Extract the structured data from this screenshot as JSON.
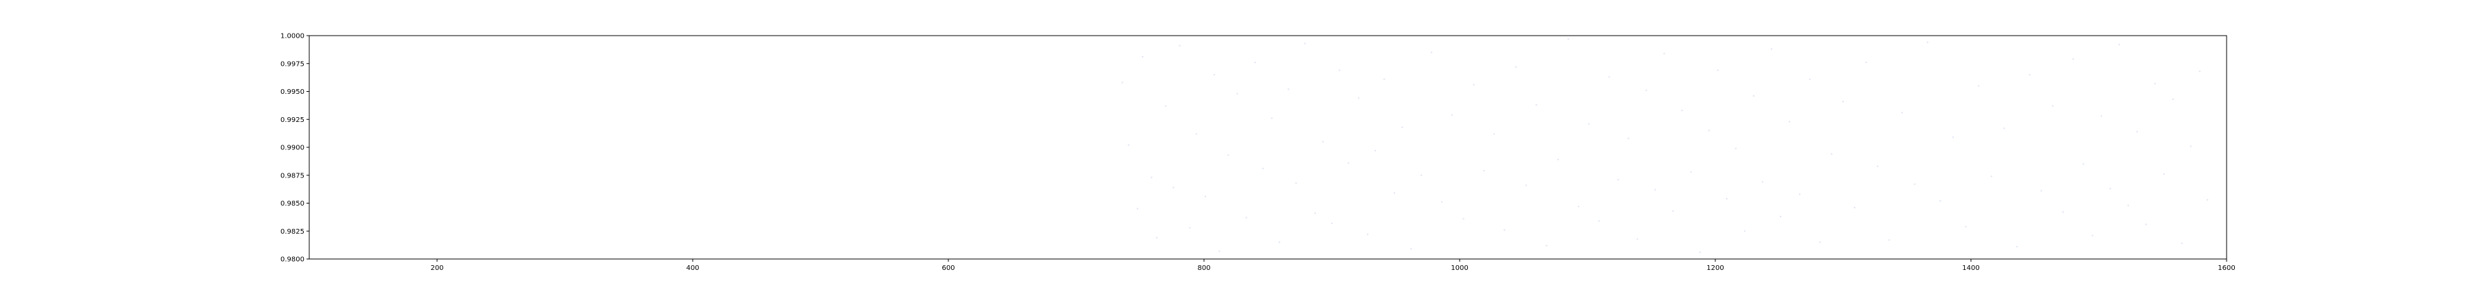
{
  "chart_data": {
    "type": "scatter",
    "title": "",
    "xlabel": "",
    "ylabel": "",
    "xlim": [
      100,
      1600
    ],
    "ylim": [
      0.98,
      1.0
    ],
    "xticks": [
      200,
      400,
      600,
      800,
      1000,
      1200,
      1400,
      1600
    ],
    "yticks": [
      0.98,
      0.9825,
      0.985,
      0.9875,
      0.99,
      0.9925,
      0.995,
      0.9975,
      1.0
    ],
    "xtick_labels": [
      "200",
      "400",
      "600",
      "800",
      "1000",
      "1200",
      "1400",
      "1600"
    ],
    "ytick_labels": [
      "0.9800",
      "0.9825",
      "0.9850",
      "0.9875",
      "0.9900",
      "0.9925",
      "0.9950",
      "0.9975",
      "1.0000"
    ],
    "grid": false,
    "legend": "none",
    "point_color": "#c8d2e6",
    "point_opacity": 0.55,
    "series": [
      {
        "points": [
          [
            736,
            0.9958
          ],
          [
            741,
            0.9902
          ],
          [
            748,
            0.9845
          ],
          [
            752,
            0.9981
          ],
          [
            759,
            0.9873
          ],
          [
            763,
            0.9819
          ],
          [
            770,
            0.9937
          ],
          [
            776,
            0.9864
          ],
          [
            781,
            0.9991
          ],
          [
            789,
            0.9828
          ],
          [
            794,
            0.9912
          ],
          [
            801,
            0.9856
          ],
          [
            808,
            0.9965
          ],
          [
            812,
            0.9807
          ],
          [
            819,
            0.9893
          ],
          [
            826,
            0.9948
          ],
          [
            833,
            0.9837
          ],
          [
            840,
            0.9976
          ],
          [
            846,
            0.9881
          ],
          [
            853,
            0.9926
          ],
          [
            859,
            0.9815
          ],
          [
            866,
            0.9952
          ],
          [
            872,
            0.9868
          ],
          [
            879,
            0.9993
          ],
          [
            887,
            0.9841
          ],
          [
            893,
            0.9905
          ],
          [
            900,
            0.9832
          ],
          [
            906,
            0.9969
          ],
          [
            913,
            0.9886
          ],
          [
            921,
            0.9944
          ],
          [
            928,
            0.9822
          ],
          [
            934,
            0.9897
          ],
          [
            941,
            0.9961
          ],
          [
            949,
            0.9859
          ],
          [
            955,
            0.9918
          ],
          [
            962,
            0.9809
          ],
          [
            970,
            0.9875
          ],
          [
            978,
            0.9985
          ],
          [
            986,
            0.9851
          ],
          [
            994,
            0.9929
          ],
          [
            1003,
            0.9836
          ],
          [
            1011,
            0.9956
          ],
          [
            1019,
            0.9879
          ],
          [
            1027,
            0.9912
          ],
          [
            1035,
            0.9826
          ],
          [
            1044,
            0.9972
          ],
          [
            1052,
            0.9866
          ],
          [
            1060,
            0.9938
          ],
          [
            1068,
            0.9812
          ],
          [
            1077,
            0.9889
          ],
          [
            1085,
            0.9997
          ],
          [
            1093,
            0.9847
          ],
          [
            1101,
            0.9921
          ],
          [
            1109,
            0.9834
          ],
          [
            1117,
            0.9963
          ],
          [
            1124,
            0.9871
          ],
          [
            1132,
            0.9908
          ],
          [
            1139,
            0.9818
          ],
          [
            1146,
            0.9951
          ],
          [
            1153,
            0.9862
          ],
          [
            1160,
            0.9984
          ],
          [
            1167,
            0.9843
          ],
          [
            1174,
            0.9933
          ],
          [
            1181,
            0.9878
          ],
          [
            1188,
            0.9806
          ],
          [
            1195,
            0.9915
          ],
          [
            1202,
            0.9969
          ],
          [
            1209,
            0.9854
          ],
          [
            1216,
            0.9899
          ],
          [
            1223,
            0.9825
          ],
          [
            1230,
            0.9946
          ],
          [
            1237,
            0.9869
          ],
          [
            1244,
            0.9988
          ],
          [
            1251,
            0.9838
          ],
          [
            1258,
            0.9923
          ],
          [
            1266,
            0.9858
          ],
          [
            1274,
            0.9961
          ],
          [
            1282,
            0.9815
          ],
          [
            1291,
            0.9894
          ],
          [
            1300,
            0.9941
          ],
          [
            1309,
            0.9846
          ],
          [
            1318,
            0.9976
          ],
          [
            1327,
            0.9883
          ],
          [
            1336,
            0.9817
          ],
          [
            1346,
            0.9931
          ],
          [
            1356,
            0.9867
          ],
          [
            1366,
            0.9994
          ],
          [
            1376,
            0.9852
          ],
          [
            1386,
            0.9909
          ],
          [
            1396,
            0.9829
          ],
          [
            1406,
            0.9955
          ],
          [
            1416,
            0.9874
          ],
          [
            1426,
            0.9917
          ],
          [
            1436,
            0.9811
          ],
          [
            1446,
            0.9965
          ],
          [
            1455,
            0.9861
          ],
          [
            1464,
            0.9937
          ],
          [
            1472,
            0.9842
          ],
          [
            1480,
            0.9979
          ],
          [
            1488,
            0.9885
          ],
          [
            1495,
            0.9821
          ],
          [
            1502,
            0.9928
          ],
          [
            1509,
            0.9863
          ],
          [
            1516,
            0.9992
          ],
          [
            1523,
            0.9848
          ],
          [
            1530,
            0.9914
          ],
          [
            1537,
            0.9831
          ],
          [
            1544,
            0.9957
          ],
          [
            1551,
            0.9876
          ],
          [
            1558,
            0.9943
          ],
          [
            1565,
            0.9814
          ],
          [
            1572,
            0.9901
          ],
          [
            1579,
            0.9968
          ],
          [
            1585,
            0.9853
          ]
        ]
      }
    ]
  }
}
